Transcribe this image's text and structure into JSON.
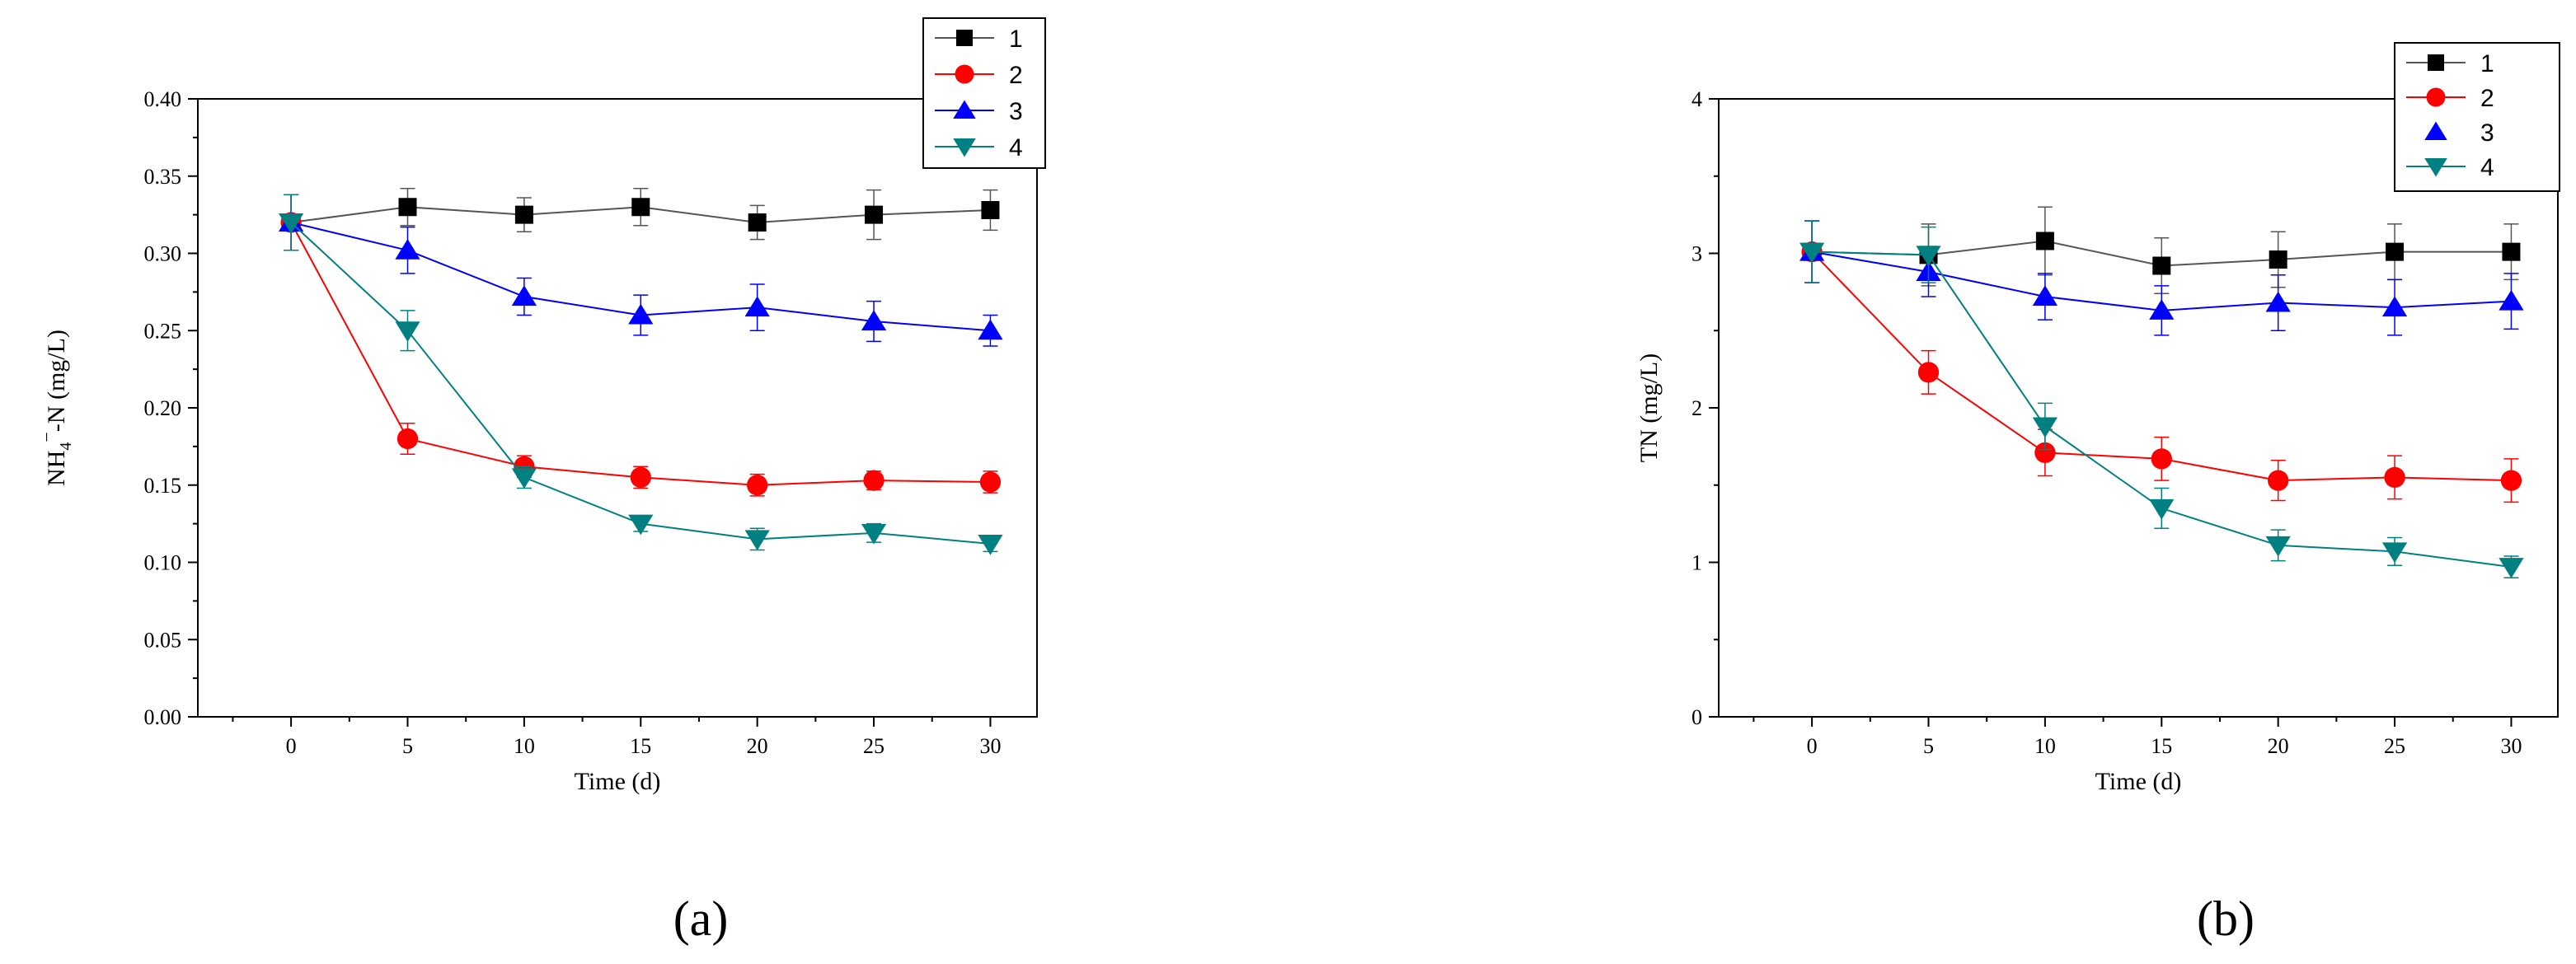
{
  "chart_data": [
    {
      "id": "a",
      "type": "line",
      "panel_label": "(a)",
      "ylabel_main": "NH",
      "ylabel_sub": "4",
      "ylabel_sup": "−",
      "ylabel_rest": "-N (mg/L)",
      "xlabel": "Time (d)",
      "ylim": [
        0,
        0.4
      ],
      "xlim": [
        -4,
        32
      ],
      "xticks": [
        0,
        5,
        10,
        15,
        20,
        25,
        30
      ],
      "xtick_labels": [
        "0",
        "5",
        "10",
        "15",
        "20",
        "25",
        "30"
      ],
      "yticks": [
        0,
        0.05,
        0.1,
        0.15,
        0.2,
        0.25,
        0.3,
        0.35,
        0.4
      ],
      "ytick_labels": [
        "0.00",
        "0.05",
        "0.10",
        "0.15",
        "0.20",
        "0.25",
        "0.30",
        "0.35",
        "0.40"
      ],
      "grid": false,
      "legend_position": "top-right",
      "x": [
        0,
        5,
        10,
        15,
        20,
        25,
        30
      ],
      "series": [
        {
          "name": "1",
          "values": [
            0.32,
            0.33,
            0.325,
            0.33,
            0.32,
            0.325,
            0.328
          ],
          "errors": [
            0.018,
            0.012,
            0.011,
            0.012,
            0.011,
            0.016,
            0.013
          ]
        },
        {
          "name": "2",
          "values": [
            0.32,
            0.18,
            0.162,
            0.155,
            0.15,
            0.153,
            0.152
          ],
          "errors": [
            0.018,
            0.01,
            0.007,
            0.007,
            0.007,
            0.006,
            0.007
          ]
        },
        {
          "name": "3",
          "values": [
            0.32,
            0.302,
            0.272,
            0.26,
            0.265,
            0.256,
            0.25
          ],
          "errors": [
            0.018,
            0.015,
            0.012,
            0.013,
            0.015,
            0.013,
            0.01
          ]
        },
        {
          "name": "4",
          "values": [
            0.32,
            0.25,
            0.155,
            0.125,
            0.115,
            0.119,
            0.112
          ],
          "errors": [
            0.018,
            0.013,
            0.007,
            0.005,
            0.007,
            0.006,
            0.005
          ]
        }
      ]
    },
    {
      "id": "b",
      "type": "line",
      "panel_label": "(b)",
      "ylabel": "TN (mg/L)",
      "xlabel": "Time (d)",
      "ylim": [
        0,
        4
      ],
      "xlim": [
        -4,
        32
      ],
      "xticks": [
        0,
        5,
        10,
        15,
        20,
        25,
        30
      ],
      "xtick_labels": [
        "0",
        "5",
        "10",
        "15",
        "20",
        "25",
        "30"
      ],
      "yticks": [
        0,
        1,
        2,
        3,
        4
      ],
      "ytick_labels": [
        "0",
        "1",
        "2",
        "3",
        "4"
      ],
      "grid": false,
      "legend_position": "top-right",
      "x": [
        0,
        5,
        10,
        15,
        20,
        25,
        30
      ],
      "series": [
        {
          "name": "1",
          "values": [
            3.01,
            2.99,
            3.08,
            2.92,
            2.96,
            3.01,
            3.01
          ],
          "errors": [
            0.2,
            0.2,
            0.22,
            0.18,
            0.18,
            0.18,
            0.18
          ]
        },
        {
          "name": "2",
          "values": [
            3.01,
            2.23,
            1.71,
            1.67,
            1.53,
            1.55,
            1.53
          ],
          "errors": [
            0.2,
            0.14,
            0.15,
            0.14,
            0.13,
            0.14,
            0.14
          ]
        },
        {
          "name": "3",
          "values": [
            3.01,
            2.88,
            2.72,
            2.63,
            2.68,
            2.65,
            2.69
          ],
          "errors": [
            0.2,
            0.16,
            0.15,
            0.16,
            0.18,
            0.18,
            0.18
          ]
        },
        {
          "name": "4",
          "values": [
            3.01,
            2.99,
            1.88,
            1.35,
            1.11,
            1.07,
            0.97
          ],
          "errors": [
            0.2,
            0.18,
            0.15,
            0.13,
            0.1,
            0.09,
            0.07
          ]
        }
      ]
    }
  ],
  "styles": [
    {
      "marker": "square",
      "color": "#000000",
      "line_color": "#555555"
    },
    {
      "marker": "circle",
      "color": "#ff0000",
      "line_color": "#ff0000"
    },
    {
      "marker": "triangle-up",
      "color": "#0000ff",
      "line_color": "#0000ff"
    },
    {
      "marker": "triangle-down",
      "color": "#008080",
      "line_color": "#008080"
    }
  ]
}
